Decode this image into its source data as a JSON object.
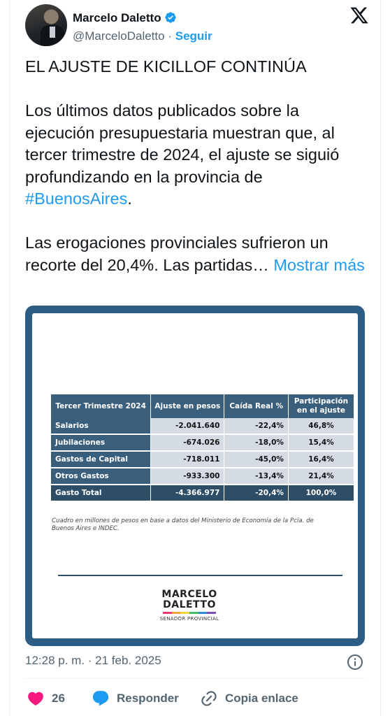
{
  "author": {
    "name": "Marcelo Daletto",
    "handle": "@MarceloDaletto",
    "separator": "·",
    "follow_label": "Seguir"
  },
  "tweet": {
    "title": "EL AJUSTE DE KICILLOF CONTINÚA",
    "paragraph1": "Los últimos datos publicados sobre la ejecución presupuestaria muestran que, al tercer trimestre de 2024, el ajuste se siguió profundizando en la provincia de",
    "hashtag": "#BuenosAires",
    "period": ".",
    "paragraph2": "Las erogaciones provinciales sufrieron un recorte del 20,4%. Las partidas…",
    "show_more": "Mostrar más"
  },
  "table": {
    "headers": [
      "Tercer Trimestre 2024",
      "Ajuste en pesos",
      "Caída Real %",
      "Participación en el ajuste"
    ],
    "rows": [
      [
        "Salarios",
        "-2.041.640",
        "-22,4%",
        "46,8%"
      ],
      [
        "Jubilaciones",
        "-674.026",
        "-18,0%",
        "15,4%"
      ],
      [
        "Gastos de Capital",
        "-718.011",
        "-45,0%",
        "16,4%"
      ],
      [
        "Otros Gastos",
        "-933.300",
        "-13,4%",
        "21,4%"
      ]
    ],
    "total": [
      "Gasto Total",
      "-4.366.977",
      "-20,4%",
      "100,0%"
    ],
    "footnote": "Cuadro en millones de pesos en base a datos del Ministerio de Economía de la Pcia. de Buenos Aires e INDEC."
  },
  "brand": {
    "line1": "MARCELO",
    "line2": "DALETTO",
    "subtitle": "SENADOR PROVINCIAL",
    "bar_colors": [
      "#e63b7a",
      "#f2a33a",
      "#f5d43c",
      "#48b96b",
      "#2c8fd6",
      "#7b4fb8"
    ]
  },
  "meta": {
    "timestamp": "12:28 p. m. · 21 feb. 2025"
  },
  "actions": {
    "likes": "26",
    "reply_label": "Responder",
    "copy_label": "Copia enlace"
  },
  "colors": {
    "accent": "#1d9bf0",
    "like": "#f91880",
    "media_frame": "#2c5d85",
    "table_header": "#3a5f7c"
  },
  "icons": [
    "verified-badge-icon",
    "x-logo-icon",
    "info-icon",
    "heart-icon",
    "reply-bubble-icon",
    "link-icon"
  ]
}
